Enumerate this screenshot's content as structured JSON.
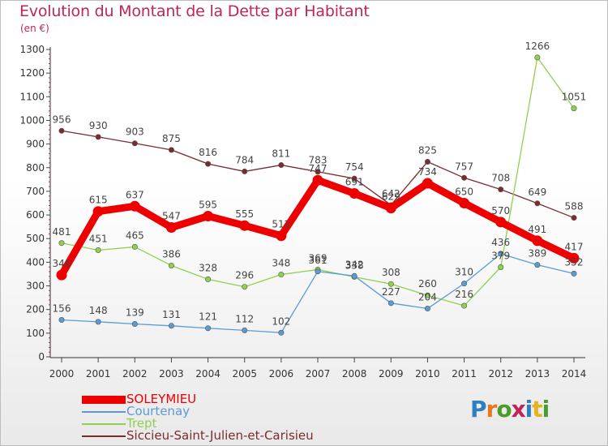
{
  "title": "Evolution du Montant de la Dette par Habitant",
  "unit": "(en €)",
  "logo": "Proxiti",
  "chart_data": {
    "type": "line",
    "title": "Evolution du Montant de la Dette par Habitant",
    "ylabel": "(en €)",
    "xlabel": "",
    "x": [
      "2000",
      "2001",
      "2002",
      "2003",
      "2004",
      "2005",
      "2006",
      "2007",
      "2008",
      "2009",
      "2010",
      "2011",
      "2012",
      "2013",
      "2014"
    ],
    "ylim": [
      0,
      1300
    ],
    "yticks": [
      0,
      100,
      200,
      300,
      400,
      500,
      600,
      700,
      800,
      900,
      1000,
      1100,
      1200,
      1300
    ],
    "grid": false,
    "legend_position": "bottom-left",
    "series": [
      {
        "name": "SOLEYMIEU",
        "color": "#ee0000",
        "values": [
          346,
          615,
          637,
          547,
          595,
          555,
          512,
          747,
          691,
          629,
          734,
          650,
          570,
          491,
          417
        ]
      },
      {
        "name": "Courtenay",
        "color": "#5b9bd5",
        "values": [
          156,
          148,
          139,
          131,
          121,
          112,
          102,
          361,
          342,
          227,
          204,
          310,
          436,
          389,
          352
        ]
      },
      {
        "name": "Trept",
        "color": "#8fd14f",
        "values": [
          481,
          451,
          465,
          386,
          328,
          296,
          348,
          369,
          338,
          308,
          260,
          216,
          379,
          1266,
          1051
        ]
      },
      {
        "name": "Siccieu-Saint-Julien-et-Carisieu",
        "color": "#7a2c2c",
        "values": [
          956,
          930,
          903,
          875,
          816,
          784,
          811,
          783,
          754,
          642,
          825,
          757,
          708,
          649,
          588
        ]
      }
    ]
  }
}
